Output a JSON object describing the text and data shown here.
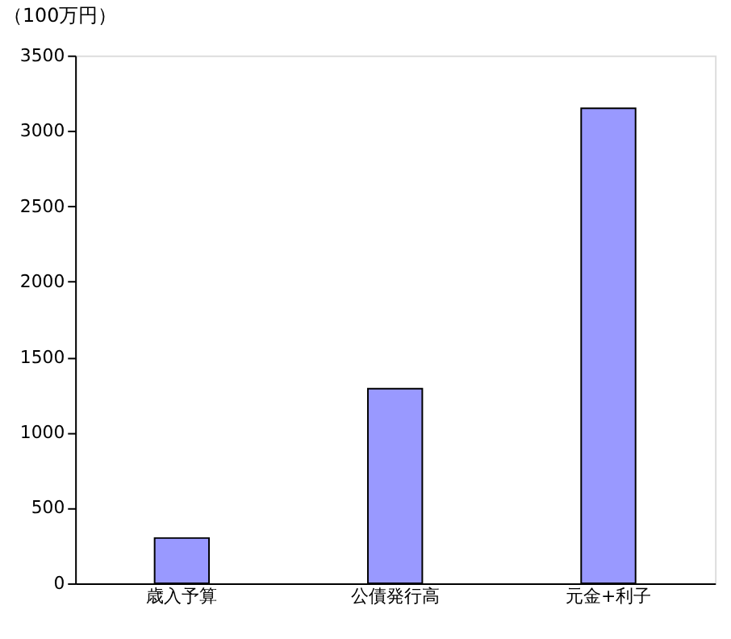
{
  "chart_data": {
    "type": "bar",
    "ylabel": "（100万円）",
    "categories": [
      "歳入予算",
      "公債発行高",
      "元金+利子"
    ],
    "values": [
      300,
      1290,
      3150
    ],
    "color": "#9999ff",
    "ylim": [
      0,
      3500
    ],
    "yticks": [
      0,
      500,
      1000,
      1500,
      2000,
      2500,
      3000,
      3500
    ],
    "grid": false
  }
}
